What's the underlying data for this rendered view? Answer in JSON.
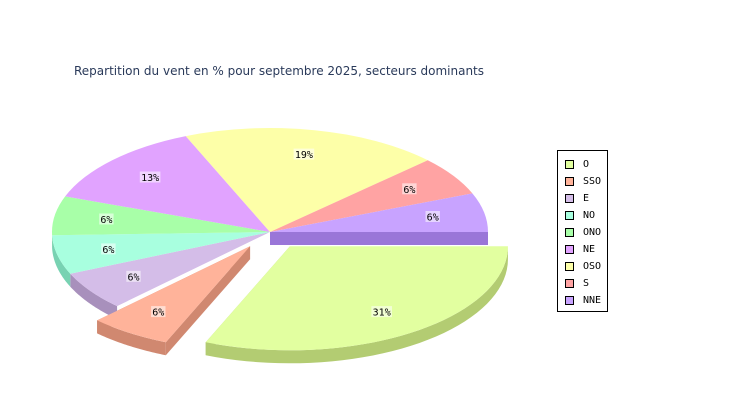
{
  "chart_data": {
    "type": "pie",
    "title": "Repartition du vent en % pour septembre 2025, secteurs dominants",
    "slices": [
      {
        "name": "O",
        "value": 31,
        "label": "31%",
        "color": "#e2ffa0",
        "side": "#b3cc72",
        "exploded": true
      },
      {
        "name": "SSO",
        "value": 6,
        "label": "6%",
        "color": "#ffb39a",
        "side": "#d08870",
        "exploded": true
      },
      {
        "name": "E",
        "value": 6,
        "label": "6%",
        "color": "#d4bde8",
        "side": "#a890bc"
      },
      {
        "name": "NO",
        "value": 6,
        "label": "6%",
        "color": "#a8ffdf",
        "side": "#78d2b2"
      },
      {
        "name": "ONO",
        "value": 6,
        "label": "6%",
        "color": "#a8ffa8",
        "side": "#78d078"
      },
      {
        "name": "NE",
        "value": 13,
        "label": "13%",
        "color": "#e1a3ff",
        "side": "#b276d2"
      },
      {
        "name": "OSO",
        "value": 19,
        "label": "19%",
        "color": "#fdffa8",
        "side": "#cfd07a"
      },
      {
        "name": "S",
        "value": 6,
        "label": "6%",
        "color": "#ffa3a3",
        "side": "#d27878"
      },
      {
        "name": "NNE",
        "value": 6,
        "label": "6%",
        "color": "#c8a3ff",
        "side": "#9a76d8"
      }
    ],
    "legend": [
      "O",
      "SSO",
      "E",
      "NO",
      "ONO",
      "NE",
      "OSO",
      "S",
      "NNE"
    ],
    "legend_position": "right"
  }
}
